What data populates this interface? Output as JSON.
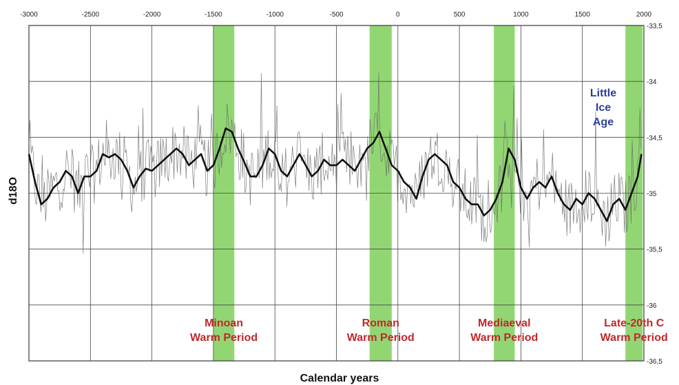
{
  "chart_data": {
    "type": "line",
    "xlabel": "Calendar years",
    "ylabel": "d18O",
    "xlim": [
      -3000,
      2000
    ],
    "ylim": [
      -33.5,
      -36.5
    ],
    "y_axis_side": "right",
    "x_axis_side": "top",
    "y_inverted": true,
    "grid": true,
    "x_ticks": [
      "-3000",
      "-2500",
      "-2000",
      "-1500",
      "-1000",
      "-500",
      "0",
      "500",
      "1000",
      "1500",
      "2000"
    ],
    "y_ticks": [
      "-33,5",
      "-34",
      "-34,5",
      "-35",
      "-35,5",
      "-36",
      "-36,5"
    ],
    "warm_periods": [
      {
        "label": [
          "Minoan",
          "Warm Period"
        ],
        "range": [
          -1500,
          -1330
        ]
      },
      {
        "label": [
          "Roman",
          "Warm Period"
        ],
        "range": [
          -230,
          -50
        ]
      },
      {
        "label": [
          "Mediaeval",
          "Warm Period"
        ],
        "range": [
          780,
          950
        ]
      },
      {
        "label": [
          "Late-20th C",
          "Warm Period"
        ],
        "range": [
          1850,
          1990
        ]
      }
    ],
    "cold_annotation": {
      "label": [
        "Little",
        "Ice",
        "Age"
      ],
      "x": 1750,
      "y": -34
    },
    "series": [
      {
        "style": "smoothed",
        "color": "#111111",
        "x": [
          -3000,
          -2950,
          -2900,
          -2850,
          -2800,
          -2750,
          -2700,
          -2650,
          -2600,
          -2550,
          -2500,
          -2450,
          -2400,
          -2350,
          -2300,
          -2250,
          -2200,
          -2150,
          -2100,
          -2050,
          -2000,
          -1950,
          -1900,
          -1850,
          -1800,
          -1750,
          -1700,
          -1650,
          -1600,
          -1550,
          -1500,
          -1450,
          -1400,
          -1350,
          -1300,
          -1250,
          -1200,
          -1150,
          -1100,
          -1050,
          -1000,
          -950,
          -900,
          -850,
          -800,
          -750,
          -700,
          -650,
          -600,
          -550,
          -500,
          -450,
          -400,
          -350,
          -300,
          -250,
          -200,
          -150,
          -100,
          -50,
          0,
          50,
          100,
          150,
          200,
          250,
          300,
          350,
          400,
          450,
          500,
          550,
          600,
          650,
          700,
          750,
          800,
          850,
          900,
          950,
          1000,
          1050,
          1100,
          1150,
          1200,
          1250,
          1300,
          1350,
          1400,
          1450,
          1500,
          1550,
          1600,
          1650,
          1700,
          1750,
          1800,
          1850,
          1900,
          1950,
          1980
        ],
        "y": [
          -34.65,
          -34.9,
          -35.1,
          -35.05,
          -34.95,
          -34.9,
          -34.8,
          -34.85,
          -35.0,
          -34.85,
          -34.85,
          -34.8,
          -34.65,
          -34.68,
          -34.65,
          -34.7,
          -34.8,
          -34.95,
          -34.85,
          -34.78,
          -34.8,
          -34.75,
          -34.7,
          -34.65,
          -34.6,
          -34.65,
          -34.75,
          -34.7,
          -34.65,
          -34.8,
          -34.75,
          -34.6,
          -34.42,
          -34.45,
          -34.6,
          -34.72,
          -34.85,
          -34.85,
          -34.75,
          -34.6,
          -34.65,
          -34.8,
          -34.85,
          -34.75,
          -34.65,
          -34.75,
          -34.85,
          -34.8,
          -34.7,
          -34.75,
          -34.75,
          -34.7,
          -34.75,
          -34.8,
          -34.7,
          -34.6,
          -34.55,
          -34.45,
          -34.6,
          -34.75,
          -34.8,
          -34.9,
          -34.95,
          -35.05,
          -34.85,
          -34.7,
          -34.65,
          -34.7,
          -34.75,
          -34.9,
          -34.95,
          -35.05,
          -35.1,
          -35.1,
          -35.2,
          -35.15,
          -35.05,
          -34.9,
          -34.6,
          -34.7,
          -34.95,
          -35.05,
          -34.95,
          -34.9,
          -34.95,
          -34.85,
          -35.0,
          -35.1,
          -35.15,
          -35.05,
          -35.1,
          -35.0,
          -35.05,
          -35.15,
          -35.25,
          -35.1,
          -35.05,
          -35.15,
          -35.0,
          -34.85,
          -34.65
        ]
      }
    ]
  }
}
